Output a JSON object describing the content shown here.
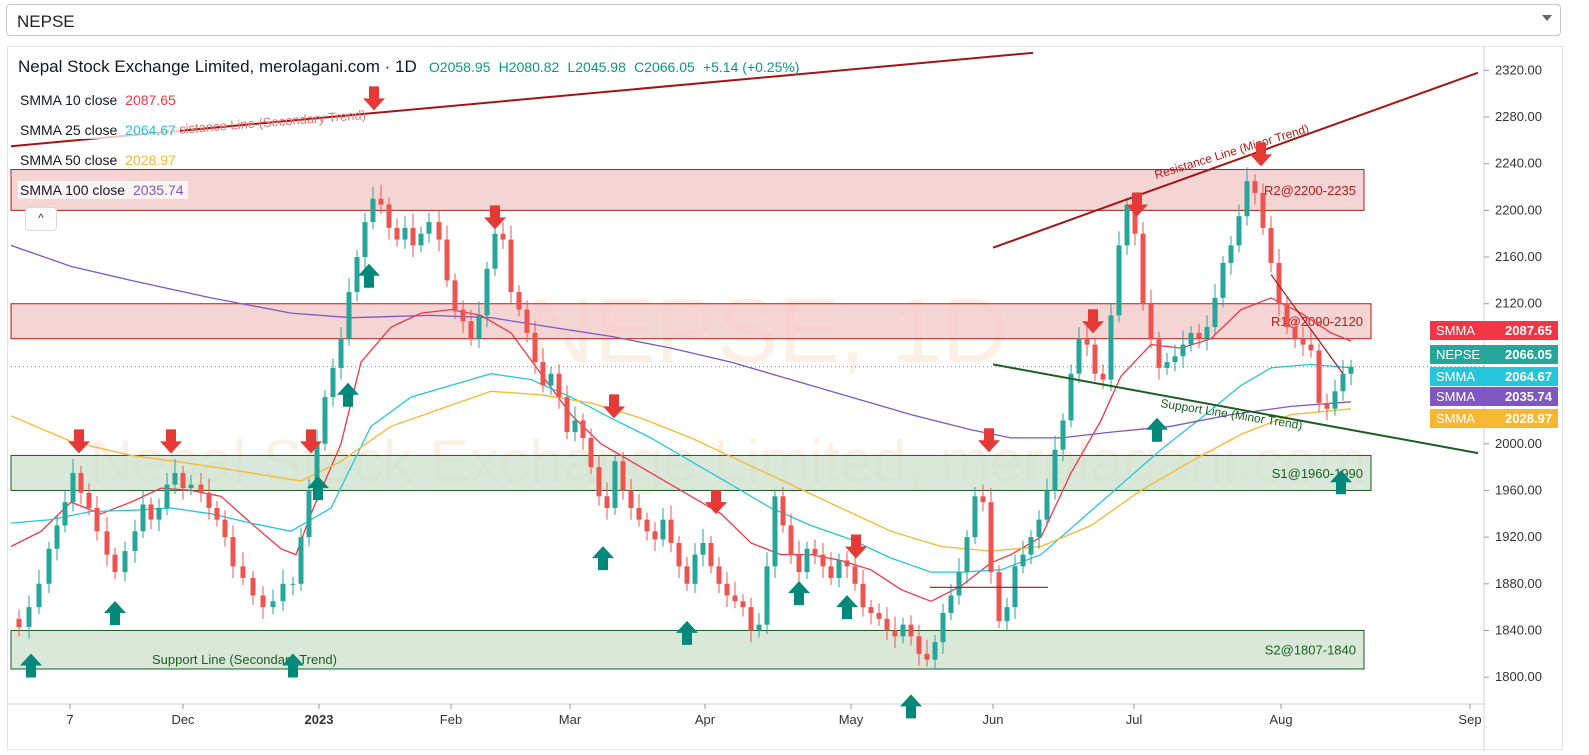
{
  "selector": {
    "value": "NEPSE"
  },
  "legend": {
    "title": "Nepal Stock Exchange Limited, merolagani.com · 1D",
    "open": "O2058.95",
    "high": "H2080.82",
    "low": "L2045.98",
    "close": "C2066.05",
    "change": "+5.14 (+0.25%)",
    "indicators": [
      {
        "label": "SMMA 10 close",
        "value": "2087.65",
        "color": "#f23645"
      },
      {
        "label": "SMMA 25 close",
        "value": "2064.67",
        "color": "#26c6da"
      },
      {
        "label": "SMMA 50 close",
        "value": "2028.97",
        "color": "#f7b731"
      },
      {
        "label": "SMMA 100 close",
        "value": "2035.74",
        "color": "#7e57c2"
      }
    ]
  },
  "watermark": {
    "line1": "NEPSE, 1D",
    "line2": "Nepal Stock Exchange Limited, merolagani.com"
  },
  "chart_data": {
    "type": "candlestick",
    "yaxis": {
      "ticks": [
        2320,
        2280,
        2240,
        2200,
        2160,
        2120,
        2080,
        2040,
        2000,
        1960,
        1920,
        1880,
        1840,
        1800
      ],
      "range": [
        1777,
        2340
      ]
    },
    "xaxis": {
      "ticks": [
        "7",
        "Dec",
        "2023",
        "Feb",
        "Mar",
        "Apr",
        "May",
        "Jun",
        "Jul",
        "Aug",
        "Sep"
      ]
    },
    "zones": [
      {
        "label": "R2@2200-2235",
        "low": 2200,
        "high": 2235,
        "type": "resistance"
      },
      {
        "label": "R1@2090-2120",
        "low": 2090,
        "high": 2120,
        "type": "resistance"
      },
      {
        "label": "S1@1960-1990",
        "low": 1960,
        "high": 1990,
        "type": "support"
      },
      {
        "label": "S2@1807-1840",
        "low": 1807,
        "high": 1840,
        "type": "support"
      }
    ],
    "trendlines": [
      {
        "label": "Resistance Line (Secondary Trend)",
        "color": "#a31515"
      },
      {
        "label": "Resistance Line (Minor Trend)",
        "color": "#a31515"
      },
      {
        "label": "Support Line (Minor Trend)",
        "color": "#1b5e20"
      },
      {
        "label": "Support Line (Secondary Trend)",
        "color": "#1b5e20"
      }
    ],
    "price_labels": [
      {
        "name": "SMMA",
        "value": "2087.65",
        "price": 2087.65,
        "color": "#f23645"
      },
      {
        "name": "NEPSE",
        "value": "2066.05",
        "price": 2066.05,
        "color": "#26a69a"
      },
      {
        "name": "SMMA",
        "value": "2064.67",
        "price": 2064.67,
        "color": "#26c6da"
      },
      {
        "name": "SMMA",
        "value": "2035.74",
        "price": 2035.74,
        "color": "#7e57c2"
      },
      {
        "name": "SMMA",
        "value": "2028.97",
        "price": 2028.97,
        "color": "#f7b731"
      }
    ],
    "series": [
      {
        "name": "SMMA 10 close",
        "color": "#f23645",
        "points": [
          [
            0,
            1912
          ],
          [
            30,
            1925
          ],
          [
            60,
            1950
          ],
          [
            90,
            1940
          ],
          [
            120,
            1950
          ],
          [
            150,
            1962
          ],
          [
            180,
            1960
          ],
          [
            210,
            1955
          ],
          [
            240,
            1932
          ],
          [
            270,
            1910
          ],
          [
            285,
            1905
          ],
          [
            300,
            1940
          ],
          [
            330,
            2000
          ],
          [
            350,
            2070
          ],
          [
            380,
            2100
          ],
          [
            410,
            2112
          ],
          [
            440,
            2115
          ],
          [
            470,
            2110
          ],
          [
            500,
            2095
          ],
          [
            530,
            2060
          ],
          [
            560,
            2025
          ],
          [
            590,
            2000
          ],
          [
            620,
            1985
          ],
          [
            650,
            1970
          ],
          [
            680,
            1955
          ],
          [
            710,
            1940
          ],
          [
            740,
            1915
          ],
          [
            770,
            1905
          ],
          [
            800,
            1905
          ],
          [
            830,
            1900
          ],
          [
            860,
            1892
          ],
          [
            890,
            1875
          ],
          [
            920,
            1865
          ],
          [
            950,
            1878
          ],
          [
            980,
            1898
          ],
          [
            1000,
            1905
          ],
          [
            1030,
            1920
          ],
          [
            1060,
            1975
          ],
          [
            1090,
            2020
          ],
          [
            1110,
            2058
          ],
          [
            1140,
            2085
          ],
          [
            1170,
            2082
          ],
          [
            1200,
            2090
          ],
          [
            1230,
            2115
          ],
          [
            1260,
            2125
          ],
          [
            1290,
            2112
          ],
          [
            1320,
            2095
          ],
          [
            1340,
            2088
          ]
        ]
      },
      {
        "name": "SMMA 25 close",
        "color": "#26c6da",
        "points": [
          [
            0,
            1932
          ],
          [
            40,
            1935
          ],
          [
            80,
            1942
          ],
          [
            120,
            1943
          ],
          [
            160,
            1945
          ],
          [
            200,
            1940
          ],
          [
            240,
            1932
          ],
          [
            280,
            1925
          ],
          [
            320,
            1945
          ],
          [
            360,
            2015
          ],
          [
            400,
            2040
          ],
          [
            440,
            2050
          ],
          [
            480,
            2060
          ],
          [
            520,
            2055
          ],
          [
            560,
            2040
          ],
          [
            600,
            2022
          ],
          [
            640,
            2005
          ],
          [
            680,
            1985
          ],
          [
            720,
            1965
          ],
          [
            760,
            1945
          ],
          [
            800,
            1930
          ],
          [
            840,
            1918
          ],
          [
            880,
            1902
          ],
          [
            920,
            1890
          ],
          [
            950,
            1890
          ],
          [
            990,
            1892
          ],
          [
            1030,
            1905
          ],
          [
            1070,
            1935
          ],
          [
            1110,
            1965
          ],
          [
            1150,
            1995
          ],
          [
            1190,
            2022
          ],
          [
            1230,
            2050
          ],
          [
            1260,
            2065
          ],
          [
            1300,
            2068
          ],
          [
            1340,
            2065
          ]
        ]
      },
      {
        "name": "SMMA 50 close",
        "color": "#f7b731",
        "points": [
          [
            0,
            2024
          ],
          [
            60,
            2002
          ],
          [
            120,
            1990
          ],
          [
            180,
            1983
          ],
          [
            240,
            1975
          ],
          [
            290,
            1968
          ],
          [
            330,
            1985
          ],
          [
            380,
            2015
          ],
          [
            430,
            2030
          ],
          [
            480,
            2045
          ],
          [
            530,
            2042
          ],
          [
            580,
            2035
          ],
          [
            630,
            2022
          ],
          [
            680,
            2005
          ],
          [
            730,
            1985
          ],
          [
            780,
            1965
          ],
          [
            830,
            1945
          ],
          [
            880,
            1925
          ],
          [
            930,
            1912
          ],
          [
            980,
            1908
          ],
          [
            1030,
            1912
          ],
          [
            1080,
            1930
          ],
          [
            1130,
            1960
          ],
          [
            1180,
            1985
          ],
          [
            1230,
            2008
          ],
          [
            1280,
            2025
          ],
          [
            1340,
            2030
          ]
        ]
      },
      {
        "name": "SMMA 100 close",
        "color": "#7e57c2",
        "points": [
          [
            0,
            2170
          ],
          [
            60,
            2152
          ],
          [
            120,
            2140
          ],
          [
            200,
            2125
          ],
          [
            280,
            2112
          ],
          [
            340,
            2108
          ],
          [
            420,
            2110
          ],
          [
            480,
            2108
          ],
          [
            540,
            2100
          ],
          [
            600,
            2092
          ],
          [
            660,
            2082
          ],
          [
            720,
            2070
          ],
          [
            780,
            2055
          ],
          [
            840,
            2040
          ],
          [
            900,
            2025
          ],
          [
            960,
            2012
          ],
          [
            1000,
            2005
          ],
          [
            1050,
            2005
          ],
          [
            1100,
            2010
          ],
          [
            1160,
            2015
          ],
          [
            1220,
            2025
          ],
          [
            1280,
            2032
          ],
          [
            1340,
            2036
          ]
        ]
      }
    ],
    "candle_path_xy": [
      [
        0,
        1850
      ],
      [
        8,
        1843
      ],
      [
        18,
        1860
      ],
      [
        28,
        1880
      ],
      [
        38,
        1910
      ],
      [
        46,
        1930
      ],
      [
        54,
        1950
      ],
      [
        62,
        1975
      ],
      [
        70,
        1958
      ],
      [
        78,
        1945
      ],
      [
        86,
        1925
      ],
      [
        96,
        1905
      ],
      [
        104,
        1890
      ],
      [
        114,
        1908
      ],
      [
        124,
        1925
      ],
      [
        132,
        1948
      ],
      [
        140,
        1935
      ],
      [
        148,
        1945
      ],
      [
        156,
        1965
      ],
      [
        164,
        1975
      ],
      [
        172,
        1962
      ],
      [
        180,
        1965
      ],
      [
        190,
        1958
      ],
      [
        198,
        1945
      ],
      [
        206,
        1935
      ],
      [
        214,
        1920
      ],
      [
        222,
        1895
      ],
      [
        232,
        1885
      ],
      [
        242,
        1870
      ],
      [
        252,
        1860
      ],
      [
        262,
        1865
      ],
      [
        272,
        1880
      ],
      [
        282,
        1880
      ],
      [
        290,
        1920
      ],
      [
        298,
        1960
      ],
      [
        306,
        2000
      ],
      [
        314,
        2040
      ],
      [
        322,
        2065
      ],
      [
        330,
        2090
      ],
      [
        338,
        2130
      ],
      [
        346,
        2160
      ],
      [
        354,
        2190
      ],
      [
        362,
        2210
      ],
      [
        370,
        2205
      ],
      [
        378,
        2185
      ],
      [
        386,
        2175
      ],
      [
        394,
        2185
      ],
      [
        402,
        2170
      ],
      [
        410,
        2180
      ],
      [
        418,
        2190
      ],
      [
        428,
        2175
      ],
      [
        436,
        2140
      ],
      [
        444,
        2115
      ],
      [
        452,
        2105
      ],
      [
        460,
        2090
      ],
      [
        468,
        2110
      ],
      [
        476,
        2150
      ],
      [
        484,
        2180
      ],
      [
        492,
        2175
      ],
      [
        500,
        2130
      ],
      [
        508,
        2115
      ],
      [
        516,
        2095
      ],
      [
        524,
        2070
      ],
      [
        532,
        2050
      ],
      [
        540,
        2060
      ],
      [
        548,
        2040
      ],
      [
        556,
        2010
      ],
      [
        564,
        2020
      ],
      [
        572,
        2005
      ],
      [
        580,
        1980
      ],
      [
        588,
        1955
      ],
      [
        596,
        1945
      ],
      [
        604,
        1985
      ],
      [
        612,
        1960
      ],
      [
        620,
        1945
      ],
      [
        628,
        1935
      ],
      [
        636,
        1925
      ],
      [
        644,
        1918
      ],
      [
        652,
        1935
      ],
      [
        660,
        1915
      ],
      [
        668,
        1895
      ],
      [
        676,
        1880
      ],
      [
        684,
        1905
      ],
      [
        692,
        1915
      ],
      [
        700,
        1895
      ],
      [
        708,
        1880
      ],
      [
        716,
        1870
      ],
      [
        724,
        1865
      ],
      [
        732,
        1860
      ],
      [
        740,
        1840
      ],
      [
        748,
        1845
      ],
      [
        756,
        1895
      ],
      [
        764,
        1955
      ],
      [
        772,
        1930
      ],
      [
        780,
        1905
      ],
      [
        788,
        1890
      ],
      [
        796,
        1910
      ],
      [
        804,
        1905
      ],
      [
        812,
        1895
      ],
      [
        820,
        1885
      ],
      [
        828,
        1900
      ],
      [
        836,
        1895
      ],
      [
        844,
        1880
      ],
      [
        852,
        1860
      ],
      [
        860,
        1855
      ],
      [
        868,
        1850
      ],
      [
        876,
        1840
      ],
      [
        884,
        1835
      ],
      [
        892,
        1845
      ],
      [
        900,
        1835
      ],
      [
        908,
        1820
      ],
      [
        916,
        1815
      ],
      [
        924,
        1830
      ],
      [
        932,
        1855
      ],
      [
        940,
        1870
      ],
      [
        948,
        1890
      ],
      [
        956,
        1920
      ],
      [
        964,
        1955
      ],
      [
        972,
        1950
      ],
      [
        980,
        1890
      ],
      [
        988,
        1848
      ],
      [
        996,
        1860
      ],
      [
        1004,
        1895
      ],
      [
        1012,
        1905
      ],
      [
        1020,
        1920
      ],
      [
        1028,
        1935
      ],
      [
        1036,
        1960
      ],
      [
        1044,
        1995
      ],
      [
        1052,
        2020
      ],
      [
        1060,
        2060
      ],
      [
        1068,
        2090
      ],
      [
        1076,
        2085
      ],
      [
        1084,
        2060
      ],
      [
        1092,
        2055
      ],
      [
        1100,
        2110
      ],
      [
        1108,
        2170
      ],
      [
        1116,
        2205
      ],
      [
        1124,
        2180
      ],
      [
        1132,
        2120
      ],
      [
        1140,
        2090
      ],
      [
        1148,
        2065
      ],
      [
        1156,
        2070
      ],
      [
        1164,
        2075
      ],
      [
        1172,
        2085
      ],
      [
        1180,
        2095
      ],
      [
        1188,
        2090
      ],
      [
        1196,
        2100
      ],
      [
        1204,
        2125
      ],
      [
        1212,
        2155
      ],
      [
        1220,
        2170
      ],
      [
        1228,
        2195
      ],
      [
        1236,
        2225
      ],
      [
        1244,
        2215
      ],
      [
        1252,
        2185
      ],
      [
        1260,
        2155
      ],
      [
        1268,
        2120
      ],
      [
        1276,
        2100
      ],
      [
        1284,
        2090
      ],
      [
        1292,
        2085
      ],
      [
        1300,
        2080
      ],
      [
        1308,
        2035
      ],
      [
        1316,
        2030
      ],
      [
        1324,
        2045
      ],
      [
        1332,
        2060
      ],
      [
        1340,
        2066
      ]
    ],
    "arrows_down": [
      [
        68,
        2002
      ],
      [
        160,
        2002
      ],
      [
        300,
        2002
      ],
      [
        363,
        2296
      ],
      [
        484,
        2194
      ],
      [
        603,
        2032
      ],
      [
        705,
        1950
      ],
      [
        845,
        1912
      ],
      [
        978,
        2003
      ],
      [
        1082,
        2105
      ],
      [
        1126,
        2205
      ],
      [
        1250,
        2248
      ]
    ],
    "arrows_up": [
      [
        20,
        1810
      ],
      [
        104,
        1855
      ],
      [
        282,
        1810
      ],
      [
        358,
        2144
      ],
      [
        337,
        2042
      ],
      [
        307,
        1962
      ],
      [
        592,
        1902
      ],
      [
        676,
        1838
      ],
      [
        788,
        1872
      ],
      [
        836,
        1860
      ],
      [
        900,
        1775
      ],
      [
        1146,
        2012
      ],
      [
        1330,
        1967
      ]
    ]
  }
}
